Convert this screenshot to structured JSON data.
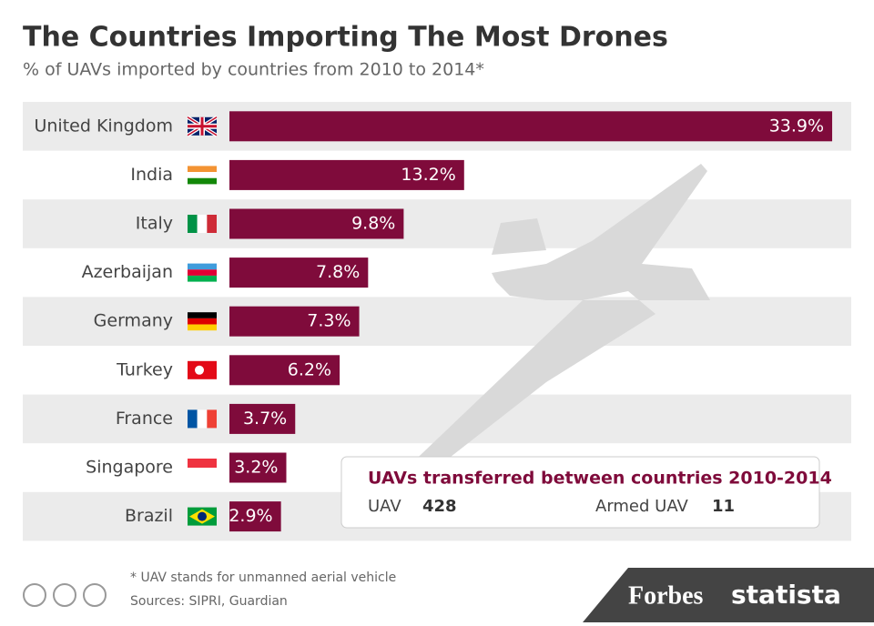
{
  "chart_data": {
    "type": "bar",
    "orientation": "horizontal",
    "title": "The Countries Importing The Most Drones",
    "subtitle": "% of UAVs imported by countries from 2010 to 2014*",
    "categories": [
      "United Kingdom",
      "India",
      "Italy",
      "Azerbaijan",
      "Germany",
      "Turkey",
      "France",
      "Singapore",
      "Brazil"
    ],
    "values": [
      33.9,
      13.2,
      9.8,
      7.8,
      7.3,
      6.2,
      3.7,
      3.2,
      2.9
    ],
    "value_labels": [
      "33.9%",
      "13.2%",
      "9.8%",
      "7.8%",
      "7.3%",
      "6.2%",
      "3.7%",
      "3.2%",
      "2.9%"
    ],
    "color": "#7f0b3b",
    "xlim": [
      0,
      34
    ],
    "info_box": {
      "title": "UAVs transferred between countries 2010-2014",
      "items": [
        {
          "label": "UAV",
          "value": 428
        },
        {
          "label": "Armed UAV",
          "value": 11
        }
      ]
    },
    "footnote": "* UAV stands for unmanned aerial vehicle",
    "source": "Sources: SIPRI, Guardian",
    "brands": [
      "Forbes",
      "statista"
    ]
  }
}
